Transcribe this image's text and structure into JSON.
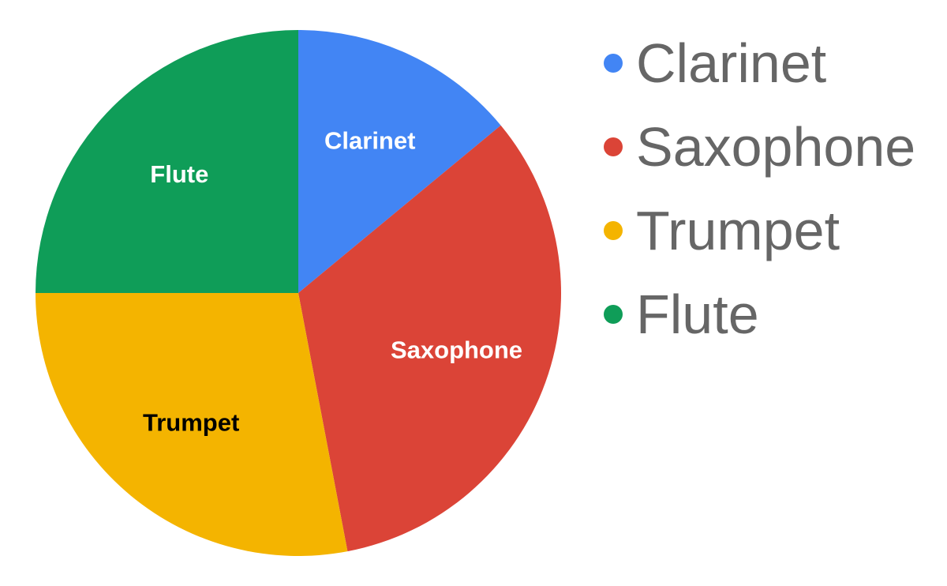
{
  "chart_data": {
    "type": "pie",
    "title": "",
    "categories": [
      "Clarinet",
      "Saxophone",
      "Trumpet",
      "Flute"
    ],
    "values": [
      14,
      33,
      28,
      25
    ],
    "value_unit": "percent of total (estimated from slice angles)",
    "colors": [
      "#4285F4",
      "#DB4437",
      "#F4B400",
      "#0F9D58"
    ],
    "slice_label_colors": [
      "#FFFFFF",
      "#FFFFFF",
      "#000000",
      "#FFFFFF"
    ],
    "start_angle": "12 o'clock",
    "direction": "clockwise",
    "legend": {
      "position": "right",
      "marker": "circle",
      "text_color": "#666666"
    }
  }
}
